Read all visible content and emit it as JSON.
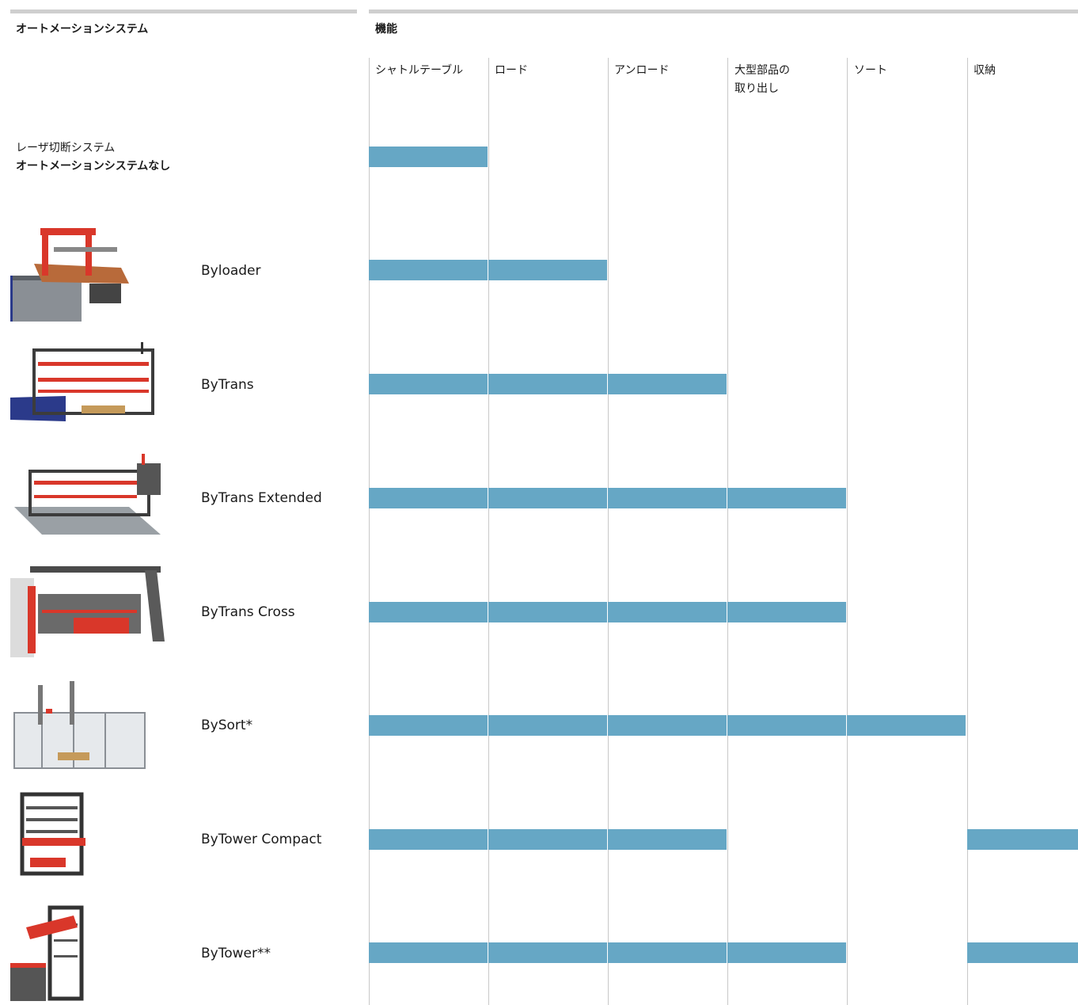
{
  "left_header": "オートメーションシステム",
  "right_header": "機能",
  "columns": [
    {
      "label": "シャトルテーブル"
    },
    {
      "label": "ロード"
    },
    {
      "label": "アンロード"
    },
    {
      "label": "大型部品の\n取り出し"
    },
    {
      "label": "ソート"
    },
    {
      "label": "収納"
    }
  ],
  "baseline": {
    "line1": "レーザ切断システム",
    "line2": "オートメーションシステムなし",
    "functions": [
      true,
      false,
      false,
      false,
      false,
      false
    ]
  },
  "rows": [
    {
      "name": "Byloader",
      "functions": [
        true,
        true,
        false,
        false,
        false,
        false
      ]
    },
    {
      "name": "ByTrans",
      "functions": [
        true,
        true,
        true,
        false,
        false,
        false
      ]
    },
    {
      "name": "ByTrans Extended",
      "functions": [
        true,
        true,
        true,
        true,
        false,
        false
      ]
    },
    {
      "name": "ByTrans Cross",
      "functions": [
        true,
        true,
        true,
        true,
        false,
        false
      ]
    },
    {
      "name": "BySort*",
      "functions": [
        true,
        true,
        true,
        true,
        true,
        false
      ]
    },
    {
      "name": "ByTower Compact",
      "functions": [
        true,
        true,
        true,
        false,
        false,
        true
      ]
    },
    {
      "name": "ByTower**",
      "functions": [
        true,
        true,
        true,
        true,
        false,
        true
      ]
    }
  ],
  "colors": {
    "bar": "#66a7c5",
    "grid_line": "#c8c8c8",
    "top_rule": "#cfcfcf",
    "machine_red": "#d9372a",
    "machine_gray": "#4a4a4a"
  }
}
